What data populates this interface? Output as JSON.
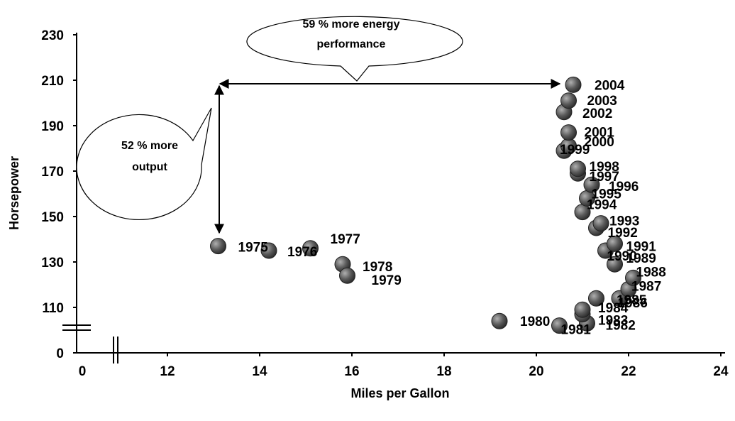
{
  "chart_data": {
    "type": "scatter",
    "xlabel": "Miles per Gallon",
    "ylabel": "Horsepower",
    "x_ticks": [
      "0",
      "12",
      "14",
      "16",
      "18",
      "20",
      "22",
      "24"
    ],
    "y_ticks": [
      "0",
      "110",
      "130",
      "150",
      "170",
      "190",
      "210",
      "230"
    ],
    "xlim": [
      10,
      24
    ],
    "ylim": [
      96,
      230
    ],
    "axis_breaks": [
      "x",
      "y"
    ],
    "grid": false,
    "marker_color": "#555555",
    "points": [
      {
        "label": "1975",
        "x": 13.1,
        "y": 137
      },
      {
        "label": "1976",
        "x": 14.2,
        "y": 135
      },
      {
        "label": "1977",
        "x": 15.1,
        "y": 136
      },
      {
        "label": "1978",
        "x": 15.8,
        "y": 129
      },
      {
        "label": "1979",
        "x": 15.9,
        "y": 124
      },
      {
        "label": "1980",
        "x": 19.2,
        "y": 104
      },
      {
        "label": "1981",
        "x": 20.5,
        "y": 102
      },
      {
        "label": "1982",
        "x": 21.1,
        "y": 103
      },
      {
        "label": "1983",
        "x": 21.0,
        "y": 107
      },
      {
        "label": "1984",
        "x": 21.0,
        "y": 109
      },
      {
        "label": "1985",
        "x": 21.8,
        "y": 114
      },
      {
        "label": "1986",
        "x": 21.3,
        "y": 114
      },
      {
        "label": "1987",
        "x": 22.0,
        "y": 118
      },
      {
        "label": "1988",
        "x": 22.1,
        "y": 123
      },
      {
        "label": "1989",
        "x": 21.7,
        "y": 129
      },
      {
        "label": "1990",
        "x": 21.5,
        "y": 135
      },
      {
        "label": "1991",
        "x": 21.7,
        "y": 138
      },
      {
        "label": "1992",
        "x": 21.3,
        "y": 145
      },
      {
        "label": "1993",
        "x": 21.4,
        "y": 147
      },
      {
        "label": "1994",
        "x": 21.0,
        "y": 152
      },
      {
        "label": "1995",
        "x": 21.1,
        "y": 158
      },
      {
        "label": "1996",
        "x": 21.2,
        "y": 164
      },
      {
        "label": "1997",
        "x": 20.9,
        "y": 169
      },
      {
        "label": "1998",
        "x": 20.9,
        "y": 171
      },
      {
        "label": "1999",
        "x": 20.6,
        "y": 179
      },
      {
        "label": "2000",
        "x": 20.7,
        "y": 181
      },
      {
        "label": "2001",
        "x": 20.7,
        "y": 187
      },
      {
        "label": "2002",
        "x": 20.6,
        "y": 196
      },
      {
        "label": "2003",
        "x": 20.7,
        "y": 201
      },
      {
        "label": "2004",
        "x": 20.8,
        "y": 208
      }
    ],
    "annotations": [
      {
        "text_lines": [
          "59 % more energy",
          "performance"
        ]
      },
      {
        "text_lines": [
          "52 % more",
          "output"
        ]
      }
    ]
  }
}
